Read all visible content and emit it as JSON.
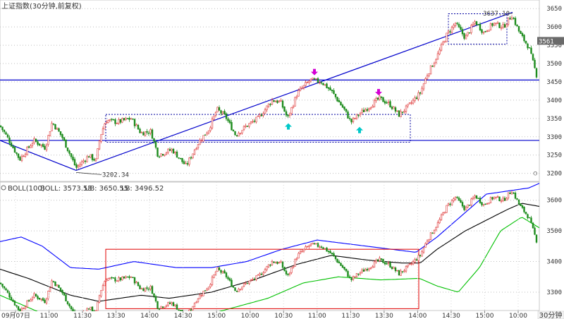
{
  "chart_data": {
    "type": "candlestick",
    "title": "上证指数(30分钟,前复权)",
    "main_panel": {
      "y_ticks": [
        3200,
        3250,
        3300,
        3350,
        3400,
        3450,
        3500,
        3550,
        3600,
        3650
      ],
      "ylim": [
        3180,
        3662
      ],
      "annotations": {
        "low_label": "3202.34",
        "high_label": "3637.10",
        "right_price_tag": "3561"
      },
      "horizontal_lines": [
        3455,
        3290
      ],
      "trend_lines": [
        {
          "from": [
            0,
            3290
          ],
          "to": [
            108,
            3208
          ]
        },
        {
          "from": [
            108,
            3208
          ],
          "to": [
            727,
            3640
          ]
        }
      ],
      "boxes": [
        {
          "x": [
            150,
            582
          ],
          "y": [
            3285,
            3361
          ]
        },
        {
          "x": [
            636,
            719
          ],
          "y": [
            3553,
            3636
          ]
        }
      ],
      "arrows": [
        {
          "x": 446,
          "price": 3470,
          "dir": "down",
          "color": "#d400d4"
        },
        {
          "x": 537,
          "price": 3415,
          "dir": "down",
          "color": "#d400d4"
        },
        {
          "x": 409,
          "price": 3335,
          "dir": "up",
          "color": "#00c8c8"
        },
        {
          "x": 510,
          "price": 3325,
          "dir": "up",
          "color": "#00c8c8"
        }
      ],
      "keypoints": [
        [
          0,
          3330
        ],
        [
          10,
          3300
        ],
        [
          28,
          3238
        ],
        [
          48,
          3290
        ],
        [
          64,
          3270
        ],
        [
          74,
          3340
        ],
        [
          88,
          3300
        ],
        [
          108,
          3215
        ],
        [
          126,
          3248
        ],
        [
          136,
          3235
        ],
        [
          142,
          3300
        ],
        [
          150,
          3345
        ],
        [
          166,
          3340
        ],
        [
          186,
          3350
        ],
        [
          200,
          3310
        ],
        [
          214,
          3315
        ],
        [
          224,
          3250
        ],
        [
          244,
          3265
        ],
        [
          264,
          3220
        ],
        [
          280,
          3280
        ],
        [
          296,
          3320
        ],
        [
          308,
          3375
        ],
        [
          320,
          3355
        ],
        [
          334,
          3305
        ],
        [
          350,
          3330
        ],
        [
          366,
          3350
        ],
        [
          386,
          3400
        ],
        [
          398,
          3395
        ],
        [
          408,
          3350
        ],
        [
          422,
          3420
        ],
        [
          440,
          3455
        ],
        [
          456,
          3450
        ],
        [
          470,
          3425
        ],
        [
          488,
          3375
        ],
        [
          498,
          3340
        ],
        [
          508,
          3360
        ],
        [
          522,
          3380
        ],
        [
          538,
          3405
        ],
        [
          552,
          3390
        ],
        [
          566,
          3360
        ],
        [
          580,
          3385
        ],
        [
          596,
          3420
        ],
        [
          606,
          3470
        ],
        [
          620,
          3520
        ],
        [
          634,
          3580
        ],
        [
          646,
          3610
        ],
        [
          660,
          3570
        ],
        [
          674,
          3615
        ],
        [
          686,
          3585
        ],
        [
          700,
          3610
        ],
        [
          714,
          3600
        ],
        [
          726,
          3632
        ],
        [
          738,
          3580
        ],
        [
          750,
          3545
        ],
        [
          763,
          3455
        ]
      ]
    },
    "boll_panel": {
      "label": "BOLL(100)",
      "boll_text": "BOLL: 3573.53",
      "ub_text": "UB: 3650.55",
      "lb_text": "LB: 3496.52",
      "y_ticks": [
        3300,
        3400,
        3500,
        3600
      ],
      "ylim": [
        3240,
        3650
      ],
      "mid_keypoints": [
        [
          0,
          3375
        ],
        [
          40,
          3345
        ],
        [
          100,
          3290
        ],
        [
          140,
          3270
        ],
        [
          200,
          3290
        ],
        [
          240,
          3280
        ],
        [
          300,
          3300
        ],
        [
          360,
          3340
        ],
        [
          420,
          3390
        ],
        [
          470,
          3420
        ],
        [
          520,
          3405
        ],
        [
          570,
          3395
        ],
        [
          596,
          3395
        ],
        [
          620,
          3440
        ],
        [
          660,
          3500
        ],
        [
          720,
          3570
        ],
        [
          740,
          3590
        ],
        [
          765,
          3580
        ]
      ],
      "ub_keypoints": [
        [
          0,
          3465
        ],
        [
          30,
          3480
        ],
        [
          60,
          3450
        ],
        [
          100,
          3380
        ],
        [
          140,
          3375
        ],
        [
          190,
          3400
        ],
        [
          250,
          3380
        ],
        [
          300,
          3380
        ],
        [
          350,
          3400
        ],
        [
          400,
          3440
        ],
        [
          450,
          3470
        ],
        [
          520,
          3450
        ],
        [
          590,
          3430
        ],
        [
          620,
          3480
        ],
        [
          660,
          3560
        ],
        [
          690,
          3620
        ],
        [
          720,
          3630
        ],
        [
          750,
          3640
        ],
        [
          765,
          3655
        ]
      ],
      "lb_keypoints": [
        [
          0,
          3290
        ],
        [
          60,
          3230
        ],
        [
          100,
          3220
        ],
        [
          150,
          3210
        ],
        [
          200,
          3225
        ],
        [
          240,
          3200
        ],
        [
          300,
          3230
        ],
        [
          380,
          3280
        ],
        [
          430,
          3330
        ],
        [
          480,
          3350
        ],
        [
          540,
          3340
        ],
        [
          595,
          3345
        ],
        [
          620,
          3320
        ],
        [
          650,
          3300
        ],
        [
          680,
          3380
        ],
        [
          710,
          3500
        ],
        [
          740,
          3545
        ],
        [
          765,
          3510
        ]
      ],
      "box": {
        "x": [
          150,
          594
        ],
        "y": [
          3246,
          3440
        ]
      }
    },
    "x_tick_labels": [
      "09月07日",
      "11:00",
      "11:30",
      "13:30",
      "14:00",
      "14:30",
      "15:00",
      "10:00",
      "10:30",
      "11:00",
      "11:30",
      "13:30",
      "14:00",
      "14:30",
      "15:00",
      "10:00"
    ],
    "period_label": "30分钟",
    "colors": {
      "up": "#e04040",
      "down": "#1a8a1a",
      "trend": "#0000cc",
      "boll_mid": "#000000",
      "boll_ub": "#0000ff",
      "boll_lb": "#00c000",
      "box_main": "#0000a0",
      "box_boll": "#e00000"
    }
  }
}
